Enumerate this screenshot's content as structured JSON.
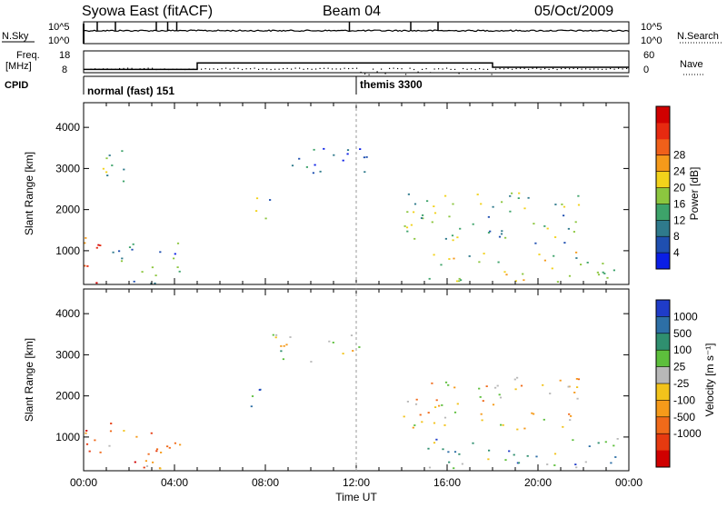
{
  "header": {
    "station": "Syowa East (fitACF)",
    "beam": "Beam 04",
    "date": "05/Oct/2009"
  },
  "top_panel": {
    "left_label": "N.Sky",
    "right_label": "N.Search",
    "left_ticks": [
      "10^5",
      "10^0"
    ],
    "right_ticks": [
      "10^5",
      "10^0"
    ],
    "spike_times_hours": [
      0.6,
      1.4,
      3.2,
      3.7,
      4.1,
      11.7,
      14.4,
      15.6
    ]
  },
  "freq_panel": {
    "left_label_1": "Freq.",
    "left_label_2": "[MHz]",
    "left_ticks": [
      "18",
      "8"
    ],
    "right_label": "Nave",
    "right_ticks": [
      "60",
      "0"
    ],
    "freq_steps": [
      {
        "from": 0,
        "to": 5,
        "value": 9.5
      },
      {
        "from": 5,
        "to": 18,
        "value": 12.5
      },
      {
        "from": 18,
        "to": 24,
        "value": 10.5
      }
    ],
    "nave_level": 12
  },
  "cpid": {
    "label": "CPID",
    "mode1": "normal (fast) 151",
    "mode2": "themis 3300",
    "switch_hour": 12
  },
  "x_axis": {
    "label": "Time UT",
    "ticks": [
      "00:00",
      "04:00",
      "08:00",
      "12:00",
      "16:00",
      "20:00",
      "00:00"
    ],
    "range_hours": [
      0,
      24
    ]
  },
  "chart_data": [
    {
      "type": "heatmap",
      "panel": "power",
      "ylabel": "Slant Range [km]",
      "yticks": [
        "1000",
        "2000",
        "3000",
        "4000"
      ],
      "ylim": [
        180,
        4600
      ],
      "xlim": [
        0,
        24
      ],
      "colorbar": {
        "label": "Power [dB]",
        "ticks": [
          "4",
          "8",
          "12",
          "16",
          "20",
          "24",
          "28"
        ],
        "colors": [
          "#0a1ee6",
          "#1f4fb0",
          "#2f7a8c",
          "#3da36a",
          "#8cc63f",
          "#f2d21b",
          "#f59a1a",
          "#f0601a",
          "#e62a10",
          "#d00000"
        ]
      },
      "echo_regions": [
        {
          "t0": 0.0,
          "t1": 1.2,
          "r0": 200,
          "r1": 1400,
          "level": 0.85
        },
        {
          "t0": 1.0,
          "t1": 4.5,
          "r0": 200,
          "r1": 1200,
          "level": 0.3
        },
        {
          "t0": 0.5,
          "t1": 2.2,
          "r0": 2700,
          "r1": 3600,
          "level": 0.4
        },
        {
          "t0": 7.0,
          "t1": 8.2,
          "r0": 1700,
          "r1": 2300,
          "level": 0.35
        },
        {
          "t0": 8.3,
          "t1": 12.5,
          "r0": 2850,
          "r1": 3550,
          "level": 0.15
        },
        {
          "t0": 14.0,
          "t1": 22.0,
          "r0": 1200,
          "r1": 2500,
          "level": 0.4
        },
        {
          "t0": 15.0,
          "t1": 23.5,
          "r0": 250,
          "r1": 1000,
          "level": 0.45
        }
      ]
    },
    {
      "type": "heatmap",
      "panel": "velocity",
      "ylabel": "Slant Range [km]",
      "yticks": [
        "1000",
        "2000",
        "3000",
        "4000"
      ],
      "ylim": [
        180,
        4600
      ],
      "xlim": [
        0,
        24
      ],
      "colorbar": {
        "label": "Velocity [m s⁻¹]",
        "ticks": [
          "1000",
          "500",
          "100",
          "25",
          "-25",
          "-100",
          "-500",
          "-1000"
        ],
        "colors": [
          "#1f3cc8",
          "#2d6fa6",
          "#2f8f6f",
          "#5dbf3c",
          "#b8b8b8",
          "#f2c31b",
          "#f59a1a",
          "#f06a1a",
          "#e63a10",
          "#d00000"
        ]
      },
      "echo_regions": [
        {
          "t0": 0.0,
          "t1": 1.2,
          "r0": 200,
          "r1": 1400,
          "level": 0.75
        },
        {
          "t0": 1.0,
          "t1": 4.5,
          "r0": 200,
          "r1": 1200,
          "level": 0.7
        },
        {
          "t0": 7.0,
          "t1": 8.2,
          "r0": 1700,
          "r1": 2300,
          "level": 0.2
        },
        {
          "t0": 8.3,
          "t1": 12.5,
          "r0": 2850,
          "r1": 3550,
          "level": 0.45
        },
        {
          "t0": 14.0,
          "t1": 22.0,
          "r0": 1200,
          "r1": 2500,
          "level": 0.55
        },
        {
          "t0": 15.0,
          "t1": 23.5,
          "r0": 250,
          "r1": 1000,
          "level": 0.3
        }
      ]
    }
  ]
}
